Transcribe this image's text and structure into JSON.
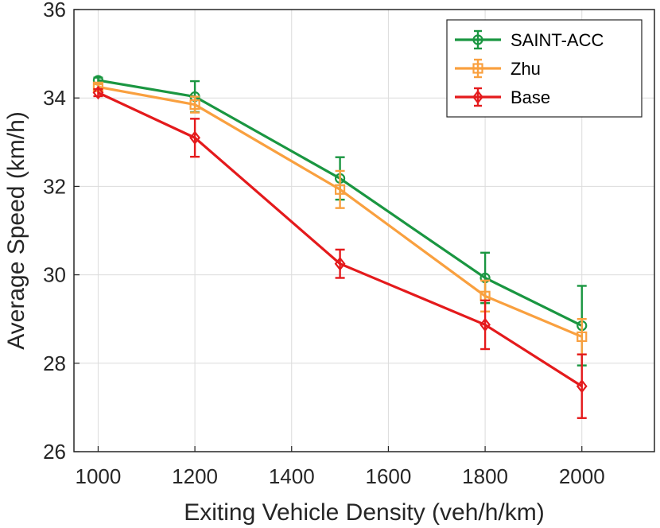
{
  "chart_data": {
    "type": "line",
    "title": "",
    "xlabel": "Exiting Vehicle Density (veh/h/km)",
    "ylabel": "Average Speed (km/h)",
    "xlim": [
      950,
      2150
    ],
    "ylim": [
      26,
      36
    ],
    "xticks": [
      1000,
      1200,
      1400,
      1600,
      1800,
      2000
    ],
    "yticks": [
      26,
      28,
      30,
      32,
      34,
      36
    ],
    "grid": true,
    "legend_position": "top-right",
    "series": [
      {
        "name": "SAINT-ACC",
        "color": "#1a9641",
        "marker": "circle",
        "x": [
          1000,
          1200,
          1500,
          1800,
          2000
        ],
        "y": [
          34.4,
          34.03,
          32.18,
          29.93,
          28.85
        ],
        "err": [
          0.06,
          0.35,
          0.48,
          0.57,
          0.9
        ]
      },
      {
        "name": "Zhu",
        "color": "#f9a03f",
        "marker": "square",
        "x": [
          1000,
          1200,
          1500,
          1800,
          2000
        ],
        "y": [
          34.25,
          33.85,
          31.93,
          29.52,
          28.6
        ],
        "err": [
          0.06,
          0.18,
          0.42,
          0.35,
          0.4
        ]
      },
      {
        "name": "Base",
        "color": "#e41a1c",
        "marker": "diamond",
        "x": [
          1000,
          1200,
          1500,
          1800,
          2000
        ],
        "y": [
          34.12,
          33.1,
          30.25,
          28.87,
          27.48
        ],
        "err": [
          0.08,
          0.43,
          0.32,
          0.55,
          0.72
        ]
      }
    ]
  }
}
